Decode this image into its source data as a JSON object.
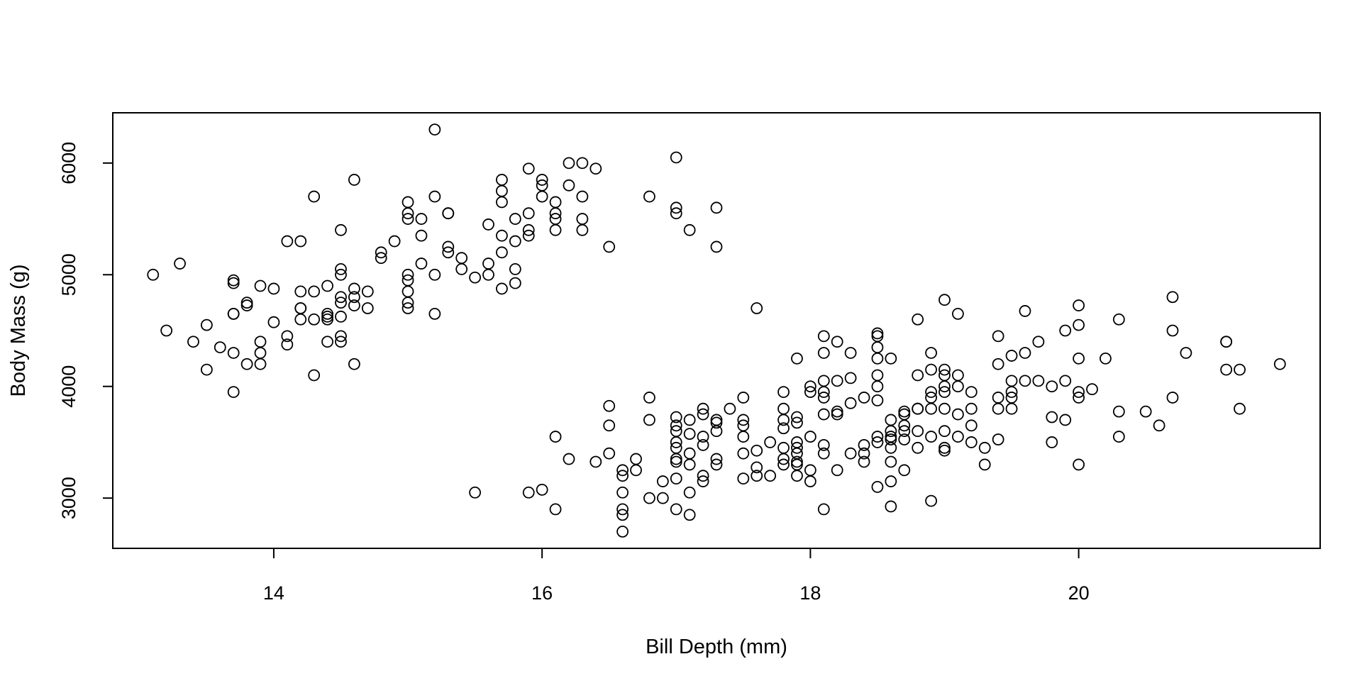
{
  "chart_data": {
    "type": "scatter",
    "title": "",
    "xlabel": "Bill Depth (mm)",
    "ylabel": "Body Mass (g)",
    "xlim": [
      12.8,
      21.8
    ],
    "ylim": [
      2550,
      6450
    ],
    "xticks": [
      14,
      16,
      18,
      20
    ],
    "yticks": [
      3000,
      4000,
      5000,
      6000
    ],
    "grid": false,
    "legend": "none",
    "marker_color": "#000000",
    "points": [
      [
        13.1,
        5000
      ],
      [
        13.2,
        4500
      ],
      [
        13.3,
        5100
      ],
      [
        13.4,
        4400
      ],
      [
        13.5,
        4550
      ],
      [
        13.5,
        4150
      ],
      [
        13.6,
        4350
      ],
      [
        13.7,
        4950
      ],
      [
        13.7,
        4925
      ],
      [
        13.7,
        4650
      ],
      [
        13.7,
        4650
      ],
      [
        13.7,
        4300
      ],
      [
        13.7,
        3950
      ],
      [
        13.8,
        4750
      ],
      [
        13.8,
        4725
      ],
      [
        13.8,
        4200
      ],
      [
        13.9,
        4900
      ],
      [
        13.9,
        4400
      ],
      [
        13.9,
        4300
      ],
      [
        13.9,
        4200
      ],
      [
        14.0,
        4875
      ],
      [
        14.0,
        4575
      ],
      [
        14.1,
        5300
      ],
      [
        14.1,
        4450
      ],
      [
        14.1,
        4375
      ],
      [
        14.2,
        5300
      ],
      [
        14.2,
        4850
      ],
      [
        14.2,
        4700
      ],
      [
        14.2,
        4700
      ],
      [
        14.2,
        4600
      ],
      [
        14.3,
        5700
      ],
      [
        14.3,
        4850
      ],
      [
        14.3,
        4600
      ],
      [
        14.3,
        4100
      ],
      [
        14.4,
        4900
      ],
      [
        14.4,
        4650
      ],
      [
        14.4,
        4625
      ],
      [
        14.4,
        4600
      ],
      [
        14.4,
        4400
      ],
      [
        14.5,
        5400
      ],
      [
        14.5,
        5050
      ],
      [
        14.5,
        5000
      ],
      [
        14.5,
        4800
      ],
      [
        14.5,
        4750
      ],
      [
        14.5,
        4625
      ],
      [
        14.5,
        4450
      ],
      [
        14.5,
        4400
      ],
      [
        14.6,
        5850
      ],
      [
        14.6,
        4875
      ],
      [
        14.6,
        4800
      ],
      [
        14.6,
        4725
      ],
      [
        14.6,
        4200
      ],
      [
        14.7,
        4850
      ],
      [
        14.7,
        4700
      ],
      [
        14.8,
        5200
      ],
      [
        14.8,
        5150
      ],
      [
        14.9,
        5300
      ],
      [
        15.0,
        5650
      ],
      [
        15.0,
        5550
      ],
      [
        15.0,
        5500
      ],
      [
        15.0,
        5000
      ],
      [
        15.0,
        4950
      ],
      [
        15.0,
        4850
      ],
      [
        15.0,
        4750
      ],
      [
        15.0,
        4700
      ],
      [
        15.1,
        5500
      ],
      [
        15.1,
        5350
      ],
      [
        15.1,
        5100
      ],
      [
        15.2,
        6300
      ],
      [
        15.2,
        5700
      ],
      [
        15.2,
        5000
      ],
      [
        15.2,
        4650
      ],
      [
        15.3,
        5550
      ],
      [
        15.3,
        5550
      ],
      [
        15.3,
        5250
      ],
      [
        15.3,
        5200
      ],
      [
        15.4,
        5150
      ],
      [
        15.4,
        5050
      ],
      [
        15.5,
        4975
      ],
      [
        15.5,
        3050
      ],
      [
        15.6,
        5450
      ],
      [
        15.6,
        5100
      ],
      [
        15.6,
        5000
      ],
      [
        15.7,
        5850
      ],
      [
        15.7,
        5750
      ],
      [
        15.7,
        5650
      ],
      [
        15.7,
        5350
      ],
      [
        15.7,
        5200
      ],
      [
        15.7,
        4875
      ],
      [
        15.8,
        5500
      ],
      [
        15.8,
        5300
      ],
      [
        15.8,
        5050
      ],
      [
        15.8,
        4925
      ],
      [
        15.9,
        5950
      ],
      [
        15.9,
        5550
      ],
      [
        15.9,
        5400
      ],
      [
        15.9,
        5350
      ],
      [
        15.9,
        3050
      ],
      [
        16.0,
        5850
      ],
      [
        16.0,
        5800
      ],
      [
        16.0,
        5700
      ],
      [
        16.0,
        3075
      ],
      [
        16.1,
        5650
      ],
      [
        16.1,
        5550
      ],
      [
        16.1,
        5500
      ],
      [
        16.1,
        5400
      ],
      [
        16.1,
        3550
      ],
      [
        16.1,
        2900
      ],
      [
        16.2,
        6000
      ],
      [
        16.2,
        5800
      ],
      [
        16.2,
        3350
      ],
      [
        16.3,
        6000
      ],
      [
        16.3,
        5700
      ],
      [
        16.3,
        5500
      ],
      [
        16.3,
        5400
      ],
      [
        16.4,
        5950
      ],
      [
        16.4,
        3325
      ],
      [
        16.5,
        5250
      ],
      [
        16.5,
        3825
      ],
      [
        16.5,
        3650
      ],
      [
        16.5,
        3400
      ],
      [
        16.6,
        3250
      ],
      [
        16.6,
        3200
      ],
      [
        16.6,
        3050
      ],
      [
        16.6,
        2900
      ],
      [
        16.6,
        2850
      ],
      [
        16.6,
        2700
      ],
      [
        16.7,
        3350
      ],
      [
        16.7,
        3250
      ],
      [
        16.8,
        5700
      ],
      [
        16.8,
        3900
      ],
      [
        16.8,
        3700
      ],
      [
        16.8,
        3000
      ],
      [
        16.9,
        3150
      ],
      [
        16.9,
        3000
      ],
      [
        17.0,
        6050
      ],
      [
        17.0,
        5600
      ],
      [
        17.0,
        5550
      ],
      [
        17.0,
        3725
      ],
      [
        17.0,
        3650
      ],
      [
        17.0,
        3600
      ],
      [
        17.0,
        3500
      ],
      [
        17.0,
        3450
      ],
      [
        17.0,
        3350
      ],
      [
        17.0,
        3325
      ],
      [
        17.0,
        3175
      ],
      [
        17.0,
        2900
      ],
      [
        17.1,
        5400
      ],
      [
        17.1,
        3700
      ],
      [
        17.1,
        3575
      ],
      [
        17.1,
        3400
      ],
      [
        17.1,
        3300
      ],
      [
        17.1,
        3050
      ],
      [
        17.1,
        2850
      ],
      [
        17.2,
        3800
      ],
      [
        17.2,
        3750
      ],
      [
        17.2,
        3550
      ],
      [
        17.2,
        3475
      ],
      [
        17.2,
        3200
      ],
      [
        17.2,
        3150
      ],
      [
        17.3,
        5600
      ],
      [
        17.3,
        5250
      ],
      [
        17.3,
        3700
      ],
      [
        17.3,
        3675
      ],
      [
        17.3,
        3600
      ],
      [
        17.3,
        3350
      ],
      [
        17.3,
        3300
      ],
      [
        17.4,
        3800
      ],
      [
        17.5,
        3900
      ],
      [
        17.5,
        3700
      ],
      [
        17.5,
        3650
      ],
      [
        17.5,
        3550
      ],
      [
        17.5,
        3400
      ],
      [
        17.5,
        3175
      ],
      [
        17.6,
        4700
      ],
      [
        17.6,
        3425
      ],
      [
        17.6,
        3275
      ],
      [
        17.6,
        3200
      ],
      [
        17.7,
        3500
      ],
      [
        17.7,
        3200
      ],
      [
        17.8,
        3950
      ],
      [
        17.8,
        3800
      ],
      [
        17.8,
        3700
      ],
      [
        17.8,
        3625
      ],
      [
        17.8,
        3450
      ],
      [
        17.8,
        3350
      ],
      [
        17.8,
        3300
      ],
      [
        17.9,
        4250
      ],
      [
        17.9,
        3725
      ],
      [
        17.9,
        3675
      ],
      [
        17.9,
        3500
      ],
      [
        17.9,
        3450
      ],
      [
        17.9,
        3400
      ],
      [
        17.9,
        3325
      ],
      [
        17.9,
        3300
      ],
      [
        17.9,
        3200
      ],
      [
        18.0,
        4000
      ],
      [
        18.0,
        3950
      ],
      [
        18.0,
        3550
      ],
      [
        18.0,
        3250
      ],
      [
        18.0,
        3150
      ],
      [
        18.1,
        4450
      ],
      [
        18.1,
        4300
      ],
      [
        18.1,
        4050
      ],
      [
        18.1,
        3950
      ],
      [
        18.1,
        3900
      ],
      [
        18.1,
        3750
      ],
      [
        18.1,
        3475
      ],
      [
        18.1,
        3400
      ],
      [
        18.1,
        2900
      ],
      [
        18.2,
        4400
      ],
      [
        18.2,
        4050
      ],
      [
        18.2,
        3775
      ],
      [
        18.2,
        3750
      ],
      [
        18.2,
        3250
      ],
      [
        18.3,
        4300
      ],
      [
        18.3,
        4075
      ],
      [
        18.3,
        3850
      ],
      [
        18.3,
        3400
      ],
      [
        18.4,
        3900
      ],
      [
        18.4,
        3475
      ],
      [
        18.4,
        3400
      ],
      [
        18.4,
        3325
      ],
      [
        18.5,
        4475
      ],
      [
        18.5,
        4450
      ],
      [
        18.5,
        4350
      ],
      [
        18.5,
        4250
      ],
      [
        18.5,
        4100
      ],
      [
        18.5,
        4000
      ],
      [
        18.5,
        3875
      ],
      [
        18.5,
        3550
      ],
      [
        18.5,
        3500
      ],
      [
        18.5,
        3100
      ],
      [
        18.6,
        4250
      ],
      [
        18.6,
        3700
      ],
      [
        18.6,
        3600
      ],
      [
        18.6,
        3550
      ],
      [
        18.6,
        3525
      ],
      [
        18.6,
        3450
      ],
      [
        18.6,
        3325
      ],
      [
        18.6,
        3150
      ],
      [
        18.6,
        2925
      ],
      [
        18.7,
        3775
      ],
      [
        18.7,
        3750
      ],
      [
        18.7,
        3650
      ],
      [
        18.7,
        3600
      ],
      [
        18.7,
        3525
      ],
      [
        18.7,
        3250
      ],
      [
        18.8,
        4600
      ],
      [
        18.8,
        4100
      ],
      [
        18.8,
        3800
      ],
      [
        18.8,
        3800
      ],
      [
        18.8,
        3600
      ],
      [
        18.8,
        3450
      ],
      [
        18.9,
        4300
      ],
      [
        18.9,
        4150
      ],
      [
        18.9,
        3950
      ],
      [
        18.9,
        3900
      ],
      [
        18.9,
        3800
      ],
      [
        18.9,
        3550
      ],
      [
        18.9,
        2975
      ],
      [
        19.0,
        4775
      ],
      [
        19.0,
        4150
      ],
      [
        19.0,
        4100
      ],
      [
        19.0,
        4000
      ],
      [
        19.0,
        3950
      ],
      [
        19.0,
        3800
      ],
      [
        19.0,
        3600
      ],
      [
        19.0,
        3450
      ],
      [
        19.0,
        3425
      ],
      [
        19.1,
        4650
      ],
      [
        19.1,
        4100
      ],
      [
        19.1,
        4000
      ],
      [
        19.1,
        3750
      ],
      [
        19.1,
        3550
      ],
      [
        19.2,
        3950
      ],
      [
        19.2,
        3800
      ],
      [
        19.2,
        3650
      ],
      [
        19.2,
        3500
      ],
      [
        19.3,
        3450
      ],
      [
        19.3,
        3300
      ],
      [
        19.4,
        4450
      ],
      [
        19.4,
        4200
      ],
      [
        19.4,
        3900
      ],
      [
        19.4,
        3800
      ],
      [
        19.4,
        3525
      ],
      [
        19.5,
        4275
      ],
      [
        19.5,
        4050
      ],
      [
        19.5,
        3950
      ],
      [
        19.5,
        3900
      ],
      [
        19.5,
        3800
      ],
      [
        19.6,
        4675
      ],
      [
        19.6,
        4300
      ],
      [
        19.6,
        4050
      ],
      [
        19.7,
        4400
      ],
      [
        19.7,
        4050
      ],
      [
        19.8,
        4000
      ],
      [
        19.8,
        3725
      ],
      [
        19.8,
        3500
      ],
      [
        19.9,
        4500
      ],
      [
        19.9,
        4050
      ],
      [
        19.9,
        3700
      ],
      [
        20.0,
        4725
      ],
      [
        20.0,
        4550
      ],
      [
        20.0,
        4250
      ],
      [
        20.0,
        3950
      ],
      [
        20.0,
        3900
      ],
      [
        20.0,
        3300
      ],
      [
        20.1,
        3975
      ],
      [
        20.2,
        4250
      ],
      [
        20.3,
        4600
      ],
      [
        20.3,
        3775
      ],
      [
        20.3,
        3550
      ],
      [
        20.5,
        3775
      ],
      [
        20.6,
        3650
      ],
      [
        20.7,
        4800
      ],
      [
        20.7,
        4500
      ],
      [
        20.7,
        3900
      ],
      [
        20.8,
        4300
      ],
      [
        21.1,
        4400
      ],
      [
        21.1,
        4400
      ],
      [
        21.1,
        4150
      ],
      [
        21.2,
        4150
      ],
      [
        21.2,
        3800
      ],
      [
        21.5,
        4200
      ]
    ]
  }
}
